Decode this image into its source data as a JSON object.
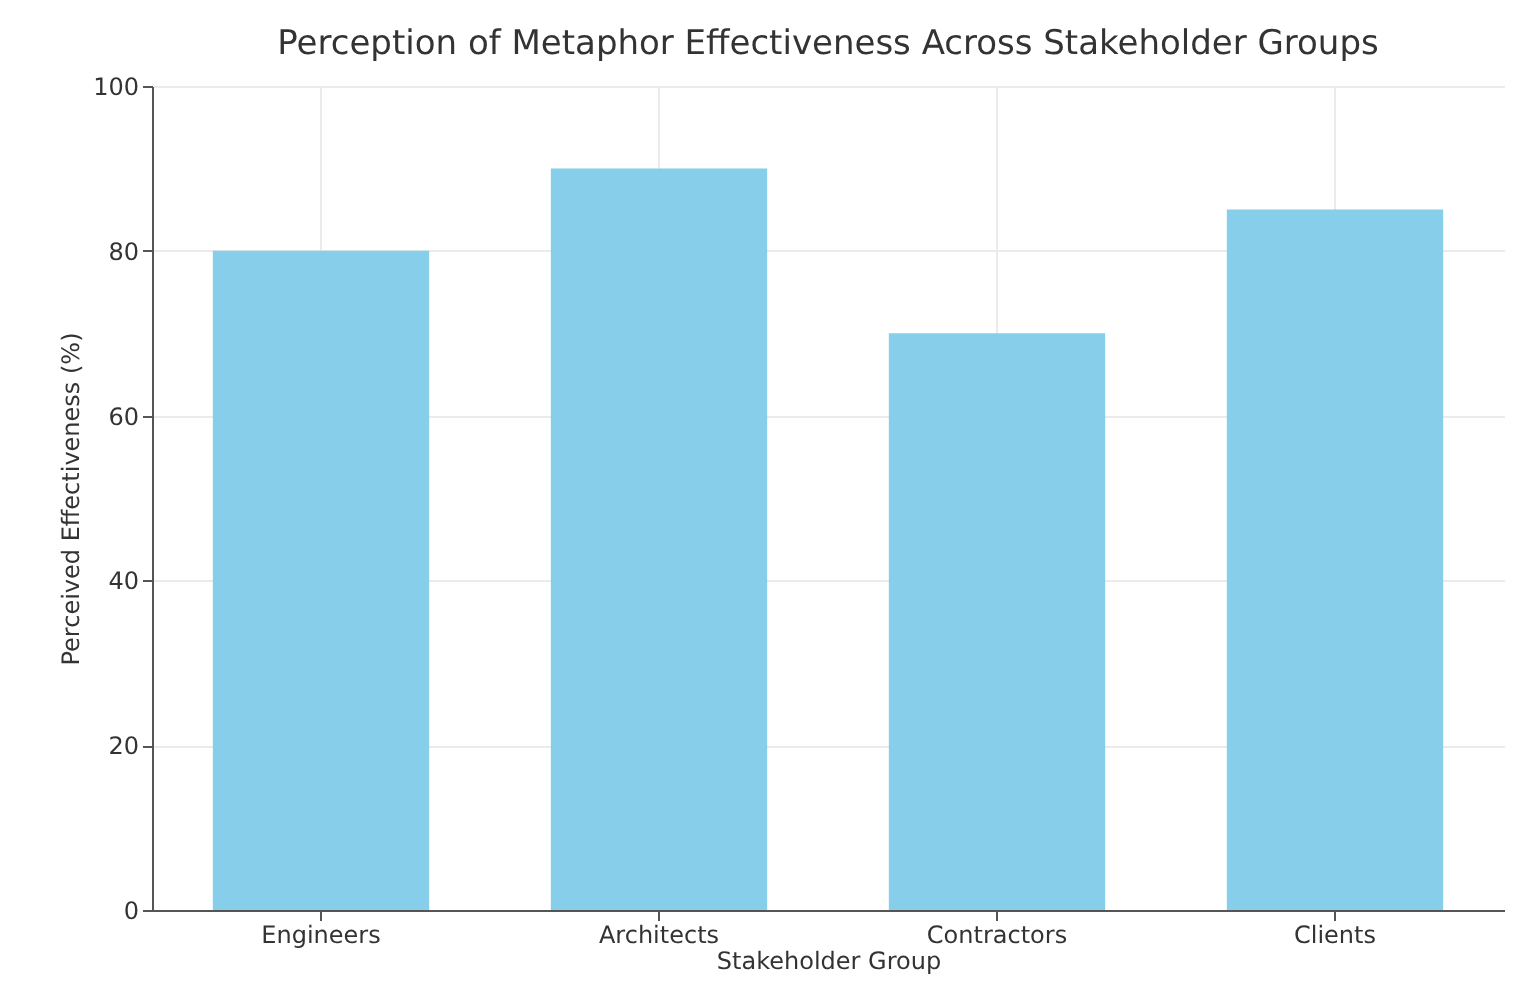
{
  "chart_data": {
    "type": "bar",
    "title": "Perception of Metaphor Effectiveness Across Stakeholder Groups",
    "xlabel": "Stakeholder Group",
    "ylabel": "Perceived Effectiveness (%)",
    "categories": [
      "Engineers",
      "Architects",
      "Contractors",
      "Clients"
    ],
    "values": [
      80,
      90,
      70,
      85
    ],
    "color": "#87ceeb",
    "ylim": [
      0,
      100
    ],
    "yticks": [
      0,
      20,
      40,
      60,
      80,
      100
    ],
    "grid": true
  }
}
